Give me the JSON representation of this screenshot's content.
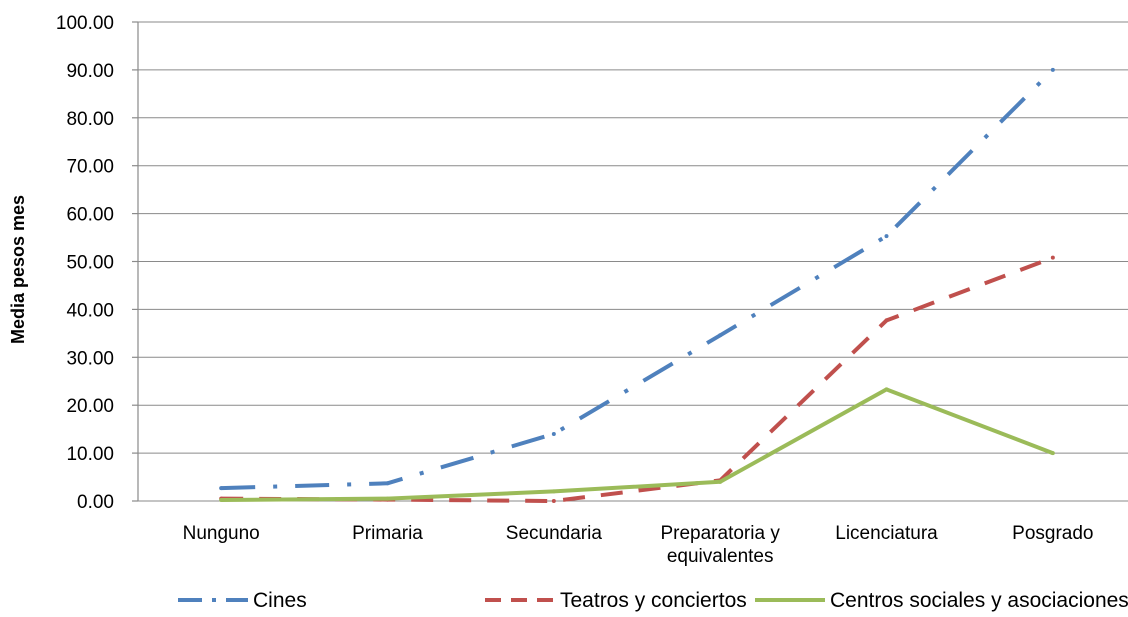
{
  "chart_data": {
    "type": "line",
    "categories": [
      [
        "Nunguno"
      ],
      [
        "Primaria"
      ],
      [
        "Secundaria"
      ],
      [
        "Preparatoria y",
        "equivalentes"
      ],
      [
        "Licenciatura"
      ],
      [
        "Posgrado"
      ]
    ],
    "series": [
      {
        "name": "Cines",
        "values": [
          2.7,
          3.7,
          14.0,
          34.6,
          55.3,
          90.0
        ],
        "color": "#4F81BD",
        "style": "dash-dot"
      },
      {
        "name": "Teatros y conciertos",
        "values": [
          0.5,
          0.3,
          0.0,
          4.3,
          37.7,
          50.8
        ],
        "color": "#C0504D",
        "style": "dashed"
      },
      {
        "name": "Centros sociales y asociaciones",
        "values": [
          0.2,
          0.5,
          2.0,
          4.0,
          23.3,
          10.0
        ],
        "color": "#9BBB59",
        "style": "solid"
      }
    ],
    "ylabel": "Media pesos mes",
    "xlabel": "",
    "title": "",
    "ylim": [
      0,
      100
    ],
    "yticks": [
      "0.00",
      "10.00",
      "20.00",
      "30.00",
      "40.00",
      "50.00",
      "60.00",
      "70.00",
      "80.00",
      "90.00",
      "100.00"
    ],
    "grid": true,
    "legend_position": "bottom"
  }
}
